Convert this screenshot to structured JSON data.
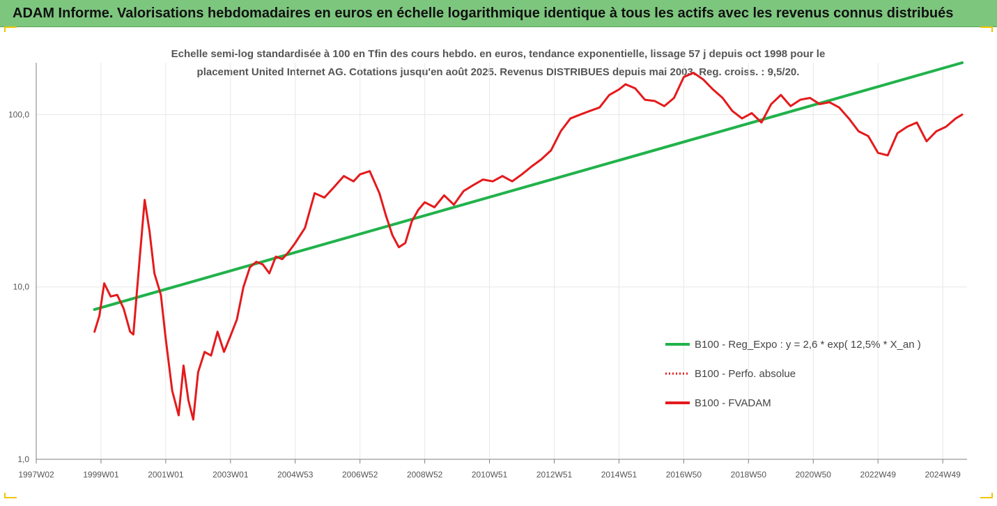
{
  "title": "ADAM Informe. Valorisations hebdomadaires en euros en échelle logarithmique identique à tous les actifs avec les revenus connus distribués",
  "chart_data": {
    "type": "line",
    "title": [
      "Echelle semi-log standardisée à 100 en Tfin des cours hebdo. en euros, tendance exponentielle, lissage 57 j depuis oct 1998 pour le",
      "placement United Internet AG. Cotations jusqu'en août 2025. Revenus DISTRIBUES depuis mai 2003. Reg. croiss. : 9,5/20."
    ],
    "x_tick_labels": [
      "1997W02",
      "1999W01",
      "2001W01",
      "2003W01",
      "2004W53",
      "2006W52",
      "2008W52",
      "2010W51",
      "2012W51",
      "2014W51",
      "2016W50",
      "2018W50",
      "2020W50",
      "2022W49",
      "2024W49"
    ],
    "x_ticks_year": [
      1997.0,
      1999.0,
      2001.0,
      2003.0,
      2005.0,
      2007.0,
      2009.0,
      2011.0,
      2013.0,
      2015.0,
      2017.0,
      2019.0,
      2021.0,
      2023.0,
      2025.0
    ],
    "y_scale": "log",
    "y_ticks": [
      1,
      10,
      100
    ],
    "y_tick_labels": [
      "1,0",
      "10,0",
      "100,0"
    ],
    "x_range": [
      1997.0,
      2025.75
    ],
    "y_range": [
      1,
      200
    ],
    "colors": {
      "trend": "#21b24b",
      "fvadam": "#e41a1c",
      "perf": "#e41a1c",
      "grid": "#e7e7e7",
      "axis": "#7f7f7f",
      "title_bar": "#7dc67e"
    },
    "legend_position": "right",
    "series": [
      {
        "name": "B100 - Reg_Expo : y = 2,6 * exp( 12,5% *  X_an )",
        "style": "solid",
        "color": "#21b24b",
        "x_year": [
          1998.8,
          2025.6
        ],
        "values": [
          7.4,
          200
        ]
      },
      {
        "name": "B100 - Perfo. absolue",
        "style": "dotted",
        "color": "#e41a1c",
        "x_year": [],
        "values": []
      },
      {
        "name": "B100 - FVADAM",
        "style": "solid",
        "color": "#e41a1c",
        "x_year": [
          1998.8,
          1998.95,
          1999.1,
          1999.3,
          1999.5,
          1999.7,
          1999.9,
          2000.0,
          2000.2,
          2000.35,
          2000.5,
          2000.65,
          2000.85,
          2001.0,
          2001.2,
          2001.4,
          2001.55,
          2001.7,
          2001.85,
          2002.0,
          2002.2,
          2002.4,
          2002.6,
          2002.8,
          2003.0,
          2003.2,
          2003.4,
          2003.6,
          2003.8,
          2004.0,
          2004.2,
          2004.4,
          2004.6,
          2004.8,
          2005.0,
          2005.3,
          2005.6,
          2005.9,
          2006.2,
          2006.5,
          2006.8,
          2007.0,
          2007.3,
          2007.6,
          2007.8,
          2008.0,
          2008.2,
          2008.4,
          2008.6,
          2008.8,
          2009.0,
          2009.3,
          2009.6,
          2009.9,
          2010.2,
          2010.5,
          2010.8,
          2011.1,
          2011.4,
          2011.7,
          2012.0,
          2012.3,
          2012.6,
          2012.9,
          2013.2,
          2013.5,
          2013.8,
          2014.1,
          2014.4,
          2014.7,
          2015.0,
          2015.2,
          2015.5,
          2015.8,
          2016.1,
          2016.4,
          2016.7,
          2017.0,
          2017.3,
          2017.6,
          2017.9,
          2018.2,
          2018.5,
          2018.8,
          2019.1,
          2019.4,
          2019.7,
          2020.0,
          2020.3,
          2020.6,
          2020.9,
          2021.2,
          2021.5,
          2021.8,
          2022.1,
          2022.4,
          2022.7,
          2023.0,
          2023.3,
          2023.6,
          2023.9,
          2024.2,
          2024.5,
          2024.8,
          2025.1,
          2025.4,
          2025.6
        ],
        "values": [
          5.5,
          6.8,
          10.5,
          8.8,
          9.0,
          7.5,
          5.5,
          5.3,
          15.0,
          32.0,
          21.0,
          12.0,
          9.0,
          5.0,
          2.5,
          1.8,
          3.5,
          2.2,
          1.7,
          3.2,
          4.2,
          4.0,
          5.5,
          4.2,
          5.2,
          6.5,
          10.0,
          13.0,
          14.0,
          13.5,
          12.0,
          15.0,
          14.5,
          16.0,
          18.0,
          22.0,
          35.0,
          33.0,
          38.0,
          44.0,
          41.0,
          45.0,
          47.0,
          35.0,
          26.0,
          20.0,
          17.0,
          18.0,
          24.0,
          28.0,
          31.0,
          29.0,
          34.0,
          30.0,
          36.0,
          39.0,
          42.0,
          41.0,
          44.0,
          41.0,
          45.0,
          50.0,
          55.0,
          62.0,
          80.0,
          95.0,
          100.0,
          105.0,
          110.0,
          130.0,
          140.0,
          150.0,
          142.0,
          122.0,
          120.0,
          112.0,
          125.0,
          165.0,
          175.0,
          160.0,
          140.0,
          125.0,
          105.0,
          95.0,
          102.0,
          90.0,
          115.0,
          130.0,
          112.0,
          122.0,
          125.0,
          115.0,
          118.0,
          110.0,
          95.0,
          80.0,
          75.0,
          60.0,
          58.0,
          78.0,
          85.0,
          90.0,
          70.0,
          80.0,
          85.0,
          95.0,
          100.0
        ]
      }
    ]
  }
}
